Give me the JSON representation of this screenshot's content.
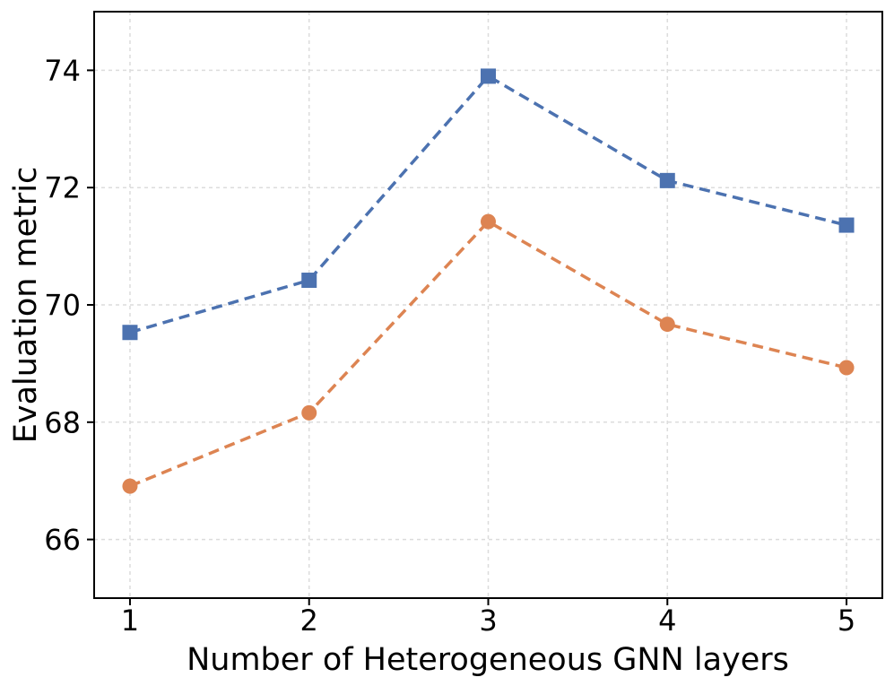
{
  "chart_data": {
    "type": "line",
    "title": "",
    "xlabel": "Number of Heterogeneous GNN layers",
    "ylabel": "Evaluation metric",
    "x": [
      1,
      2,
      3,
      4,
      5
    ],
    "series": [
      {
        "name": "blue-squares-series",
        "color": "#4C72B0",
        "marker": "square",
        "linestyle": "dashed",
        "values": [
          69.53,
          70.42,
          73.9,
          72.12,
          71.36
        ]
      },
      {
        "name": "orange-circles-series",
        "color": "#DD8452",
        "marker": "circle",
        "linestyle": "dashed",
        "values": [
          66.91,
          68.16,
          71.42,
          69.67,
          68.93
        ]
      }
    ],
    "x_ticks": [
      1,
      2,
      3,
      4,
      5
    ],
    "y_ticks": [
      66,
      68,
      70,
      72,
      74
    ],
    "xlim": [
      0.8,
      5.2
    ],
    "ylim": [
      65,
      75
    ],
    "grid": true,
    "grid_color": "#dcdcdc",
    "spine_color": "#000000",
    "background_color": "#ffffff",
    "legend": null
  }
}
